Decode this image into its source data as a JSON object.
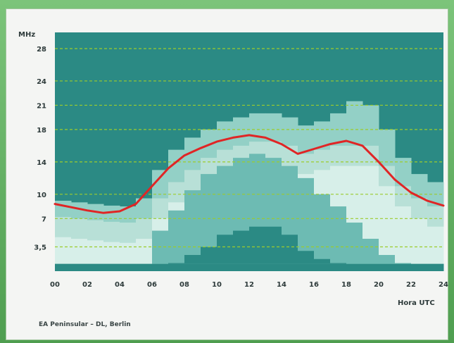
{
  "caption": "EA Peninsular – DL, Berlin",
  "chart_data": {
    "type": "heatmap",
    "title": "",
    "ylabel": "MHz",
    "xlabel": "Hora UTC",
    "x_ticks": [
      "00",
      "02",
      "04",
      "06",
      "08",
      "10",
      "12",
      "14",
      "16",
      "18",
      "20",
      "22",
      "24"
    ],
    "y_ticks": [
      {
        "label": "28",
        "value": 28
      },
      {
        "label": "24",
        "value": 24
      },
      {
        "label": "21",
        "value": 21
      },
      {
        "label": "18",
        "value": 18
      },
      {
        "label": "14",
        "value": 14
      },
      {
        "label": "10",
        "value": 10
      },
      {
        "label": "7",
        "value": 7
      },
      {
        "label": "3,5",
        "value": 3.5
      }
    ],
    "xlim": [
      0,
      24
    ],
    "ylim": [
      0.5,
      30
    ],
    "grid": true,
    "heatmap": {
      "hour_start": 0,
      "hour_step": 1,
      "levels": [
        0,
        1,
        2,
        3,
        4,
        5
      ],
      "colors": [
        "#2b8a84",
        "#4aa39c",
        "#6dbbb3",
        "#93d0c6",
        "#b8e0d7",
        "#d7efe9"
      ],
      "columns": [
        [
          8.2,
          8.5,
          9.2,
          10.8,
          0,
          0
        ],
        [
          8.0,
          8.3,
          9.0,
          10.5,
          0,
          0
        ],
        [
          7.8,
          8.0,
          8.8,
          10.2,
          0,
          0
        ],
        [
          7.6,
          7.9,
          8.6,
          10.0,
          0,
          0
        ],
        [
          7.5,
          7.7,
          8.5,
          9.8,
          0,
          0
        ],
        [
          8.0,
          8.5,
          9.5,
          11.0,
          0,
          0
        ],
        [
          10.5,
          11.5,
          13.0,
          15.0,
          5.5,
          0
        ],
        [
          12.5,
          14.0,
          15.5,
          17.0,
          8.0,
          1.5
        ],
        [
          14.0,
          15.5,
          17.0,
          18.5,
          10.5,
          2.5
        ],
        [
          15.5,
          16.5,
          18.0,
          19.5,
          12.5,
          3.5
        ],
        [
          16.5,
          17.5,
          19.0,
          20.5,
          13.5,
          5.0
        ],
        [
          17.0,
          18.0,
          19.5,
          21.0,
          14.5,
          5.5
        ],
        [
          17.5,
          18.5,
          20.0,
          21.0,
          15.0,
          6.0
        ],
        [
          17.5,
          18.5,
          20.0,
          20.5,
          14.5,
          6.0
        ],
        [
          17.0,
          18.0,
          19.5,
          20.5,
          13.5,
          5.0
        ],
        [
          16.0,
          17.0,
          18.5,
          19.5,
          12.0,
          3.0
        ],
        [
          16.5,
          17.5,
          19.0,
          20.0,
          10.0,
          2.0
        ],
        [
          17.0,
          18.5,
          20.0,
          21.0,
          8.5,
          1.5
        ],
        [
          17.0,
          19.0,
          21.5,
          23.5,
          6.5,
          1.0
        ],
        [
          17.0,
          18.5,
          21.0,
          23.0,
          4.5,
          0.8
        ],
        [
          14.5,
          16.0,
          18.0,
          19.5,
          2.5,
          0
        ],
        [
          12.0,
          13.0,
          14.5,
          16.0,
          1.5,
          0
        ],
        [
          10.5,
          11.5,
          12.5,
          14.0,
          0,
          0
        ],
        [
          9.5,
          10.5,
          11.5,
          12.5,
          0,
          0
        ]
      ]
    },
    "series": [
      {
        "color": "#e02525",
        "x": [
          0,
          1,
          2,
          3,
          4,
          5,
          6,
          7,
          8,
          9,
          10,
          11,
          12,
          13,
          14,
          15,
          16,
          17,
          18,
          19,
          20,
          21,
          22,
          23,
          24
        ],
        "y": [
          8.8,
          8.4,
          8.0,
          7.7,
          7.9,
          8.8,
          11.0,
          13.2,
          14.8,
          15.7,
          16.5,
          17.0,
          17.3,
          17.0,
          16.2,
          15.0,
          15.6,
          16.2,
          16.6,
          16.0,
          14.0,
          11.8,
          10.2,
          9.2,
          8.6
        ]
      }
    ]
  }
}
